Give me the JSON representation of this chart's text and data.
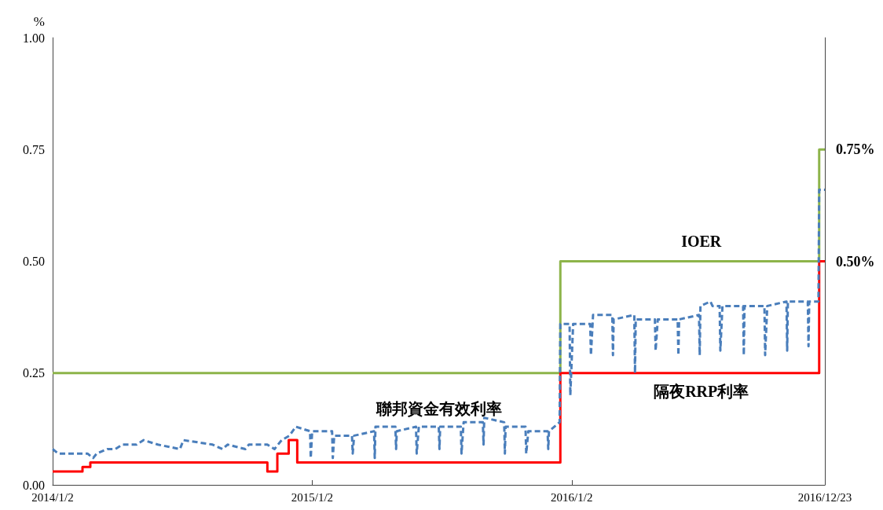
{
  "chart_data": {
    "type": "line",
    "ylabel": "%",
    "xlim": [
      "2014-01-02",
      "2016-12-23"
    ],
    "xticks": [
      {
        "value": "2014-01-02",
        "label": "2014/1/2"
      },
      {
        "value": "2015-01-02",
        "label": "2015/1/2"
      },
      {
        "value": "2016-01-02",
        "label": "2016/1/2"
      },
      {
        "value": "2016-12-23",
        "label": "2016/12/23"
      }
    ],
    "ylim": [
      0,
      1
    ],
    "yticks": [
      {
        "value": 0,
        "label": "0.00"
      },
      {
        "value": 0.25,
        "label": "0.25"
      },
      {
        "value": 0.5,
        "label": "0.50"
      },
      {
        "value": 0.75,
        "label": "0.75"
      },
      {
        "value": 1,
        "label": "1.00"
      }
    ],
    "grid": false,
    "legend": false,
    "marker": "none",
    "series": [
      {
        "name": "IOER",
        "type": "step",
        "color": "#8db44a",
        "line_style": "solid",
        "x": [
          "2014-01-02",
          "2015-12-17",
          "2016-12-15",
          "2016-12-23"
        ],
        "values": [
          0.25,
          0.5,
          0.75,
          0.75
        ]
      },
      {
        "name": "隔夜RRP利率",
        "type": "step",
        "color": "#ff0000",
        "line_style": "solid",
        "x": [
          "2014-01-02",
          "2014-02-13",
          "2014-02-24",
          "2014-10-31",
          "2014-11-14",
          "2014-11-30",
          "2014-12-12",
          "2015-12-17",
          "2016-12-15",
          "2016-12-23"
        ],
        "values": [
          0.03,
          0.04,
          0.05,
          0.03,
          0.07,
          0.1,
          0.05,
          0.25,
          0.5,
          0.5
        ]
      },
      {
        "name": "聯邦資金有效利率",
        "color": "#4a7ebb",
        "line_style": "dashed",
        "x": [
          "2014-01-02",
          "2014-01-10",
          "2014-02-20",
          "2014-02-28",
          "2014-03-05",
          "2014-03-20",
          "2014-03-31",
          "2014-04-10",
          "2014-04-30",
          "2014-05-10",
          "2014-05-30",
          "2014-06-30",
          "2014-07-05",
          "2014-08-15",
          "2014-08-29",
          "2014-09-05",
          "2014-09-30",
          "2014-10-05",
          "2014-10-31",
          "2014-11-10",
          "2014-11-20",
          "2014-12-01",
          "2014-12-10",
          "2014-12-30",
          "2014-12-31",
          "2015-01-02",
          "2015-01-30",
          "2015-01-31",
          "2015-02-02",
          "2015-02-27",
          "2015-02-28",
          "2015-03-02",
          "2015-03-30",
          "2015-03-31",
          "2015-04-01",
          "2015-04-29",
          "2015-04-30",
          "2015-05-01",
          "2015-05-28",
          "2015-05-29",
          "2015-06-01",
          "2015-06-29",
          "2015-06-30",
          "2015-07-01",
          "2015-07-30",
          "2015-07-31",
          "2015-08-03",
          "2015-08-30",
          "2015-08-31",
          "2015-09-01",
          "2015-09-29",
          "2015-09-30",
          "2015-10-01",
          "2015-10-29",
          "2015-10-30",
          "2015-11-02",
          "2015-11-29",
          "2015-11-30",
          "2015-12-01",
          "2015-12-16",
          "2015-12-17",
          "2015-12-30",
          "2015-12-31",
          "2016-01-04",
          "2016-01-28",
          "2016-01-29",
          "2016-02-01",
          "2016-02-28",
          "2016-02-29",
          "2016-03-01",
          "2016-03-30",
          "2016-03-31",
          "2016-04-01",
          "2016-04-28",
          "2016-04-29",
          "2016-05-02",
          "2016-05-30",
          "2016-05-31",
          "2016-06-01",
          "2016-06-29",
          "2016-06-30",
          "2016-07-01",
          "2016-07-15",
          "2016-07-18",
          "2016-07-28",
          "2016-07-29",
          "2016-08-01",
          "2016-08-30",
          "2016-08-31",
          "2016-09-01",
          "2016-09-29",
          "2016-09-30",
          "2016-10-03",
          "2016-10-30",
          "2016-10-31",
          "2016-11-01",
          "2016-11-29",
          "2016-11-30",
          "2016-12-01",
          "2016-12-14",
          "2016-12-15",
          "2016-12-23"
        ],
        "values": [
          0.08,
          0.07,
          0.07,
          0.06,
          0.07,
          0.08,
          0.08,
          0.09,
          0.09,
          0.1,
          0.09,
          0.08,
          0.1,
          0.09,
          0.08,
          0.09,
          0.08,
          0.09,
          0.09,
          0.08,
          0.1,
          0.11,
          0.13,
          0.12,
          0.06,
          0.12,
          0.12,
          0.06,
          0.11,
          0.11,
          0.07,
          0.11,
          0.12,
          0.06,
          0.13,
          0.13,
          0.08,
          0.12,
          0.13,
          0.07,
          0.13,
          0.13,
          0.08,
          0.13,
          0.13,
          0.07,
          0.14,
          0.14,
          0.09,
          0.15,
          0.14,
          0.07,
          0.13,
          0.13,
          0.07,
          0.12,
          0.12,
          0.08,
          0.12,
          0.14,
          0.36,
          0.36,
          0.2,
          0.36,
          0.36,
          0.29,
          0.38,
          0.38,
          0.29,
          0.37,
          0.38,
          0.25,
          0.37,
          0.37,
          0.3,
          0.37,
          0.37,
          0.29,
          0.37,
          0.38,
          0.29,
          0.4,
          0.41,
          0.4,
          0.4,
          0.3,
          0.4,
          0.4,
          0.29,
          0.4,
          0.4,
          0.29,
          0.4,
          0.41,
          0.3,
          0.41,
          0.41,
          0.31,
          0.41,
          0.41,
          0.66,
          0.66
        ]
      }
    ],
    "annotations": [
      {
        "text": "0.75%",
        "x": "2016-12-23",
        "y": 0.75
      },
      {
        "text": "0.50%",
        "x": "2016-12-23",
        "y": 0.5
      }
    ]
  }
}
